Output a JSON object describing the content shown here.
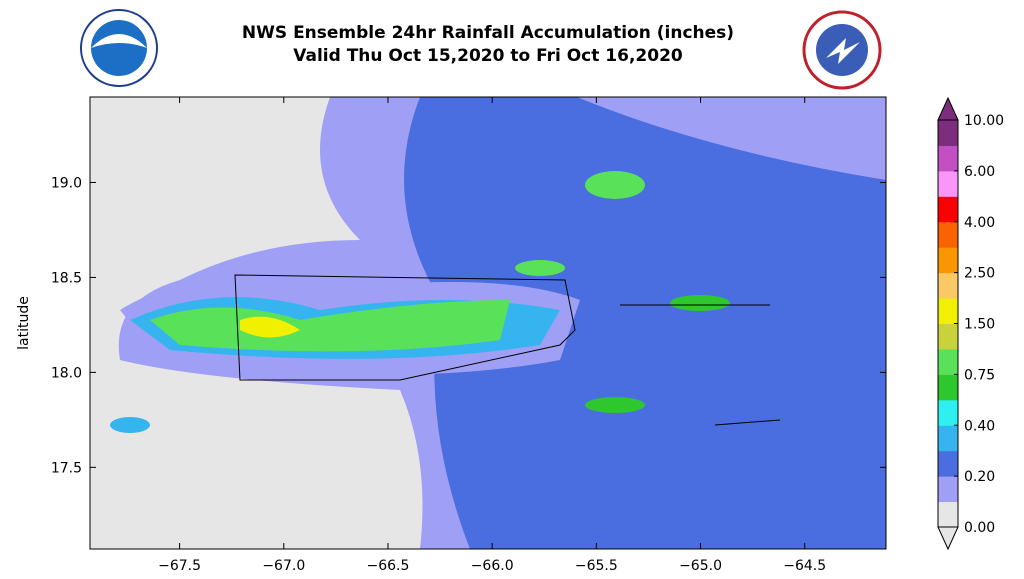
{
  "header": {
    "title": [
      "NWS Ensemble 24hr Rainfall Accumulation (inches)",
      "Valid Thu Oct 15,2020 to Fri Oct 16,2020"
    ]
  },
  "map": {
    "ylabel": "latitude",
    "xlim": [
      -67.93,
      -64.11
    ],
    "ylim": [
      17.07,
      19.45
    ],
    "xticks": [
      {
        "value": -67.5,
        "label": "−67.5"
      },
      {
        "value": -67,
        "label": "−67.0"
      },
      {
        "value": -66.5,
        "label": "−66.5"
      },
      {
        "value": -66,
        "label": "−66.0"
      },
      {
        "value": -65.5,
        "label": "−65.5"
      },
      {
        "value": -65,
        "label": "−65.0"
      },
      {
        "value": -64.5,
        "label": "−64.5"
      }
    ],
    "yticks": [
      {
        "value": 17.5,
        "label": "17.5"
      },
      {
        "value": 18,
        "label": "18.0"
      },
      {
        "value": 18.5,
        "label": "18.5"
      },
      {
        "value": 19,
        "label": "19.0"
      }
    ]
  },
  "colorbar": {
    "ticks": [
      {
        "value": 0,
        "label": "0.00"
      },
      {
        "value": 0.2,
        "label": "0.20"
      },
      {
        "value": 0.4,
        "label": "0.40"
      },
      {
        "value": 0.75,
        "label": "0.75"
      },
      {
        "value": 1.5,
        "label": "1.50"
      },
      {
        "value": 2.5,
        "label": "2.50"
      },
      {
        "value": 4,
        "label": "4.00"
      },
      {
        "value": 6,
        "label": "6.00"
      },
      {
        "value": 10,
        "label": "10.00"
      }
    ],
    "colors": [
      "#e6e6e6",
      "#9f9ff5",
      "#4a6ee0",
      "#36b4f0",
      "#2ef0f0",
      "#2ec82e",
      "#5ae15a",
      "#c8d23c",
      "#f0f000",
      "#fac864",
      "#fa9600",
      "#fa6400",
      "#fa0000",
      "#fa96fa",
      "#c350c3",
      "#7d2d7d"
    ]
  }
}
